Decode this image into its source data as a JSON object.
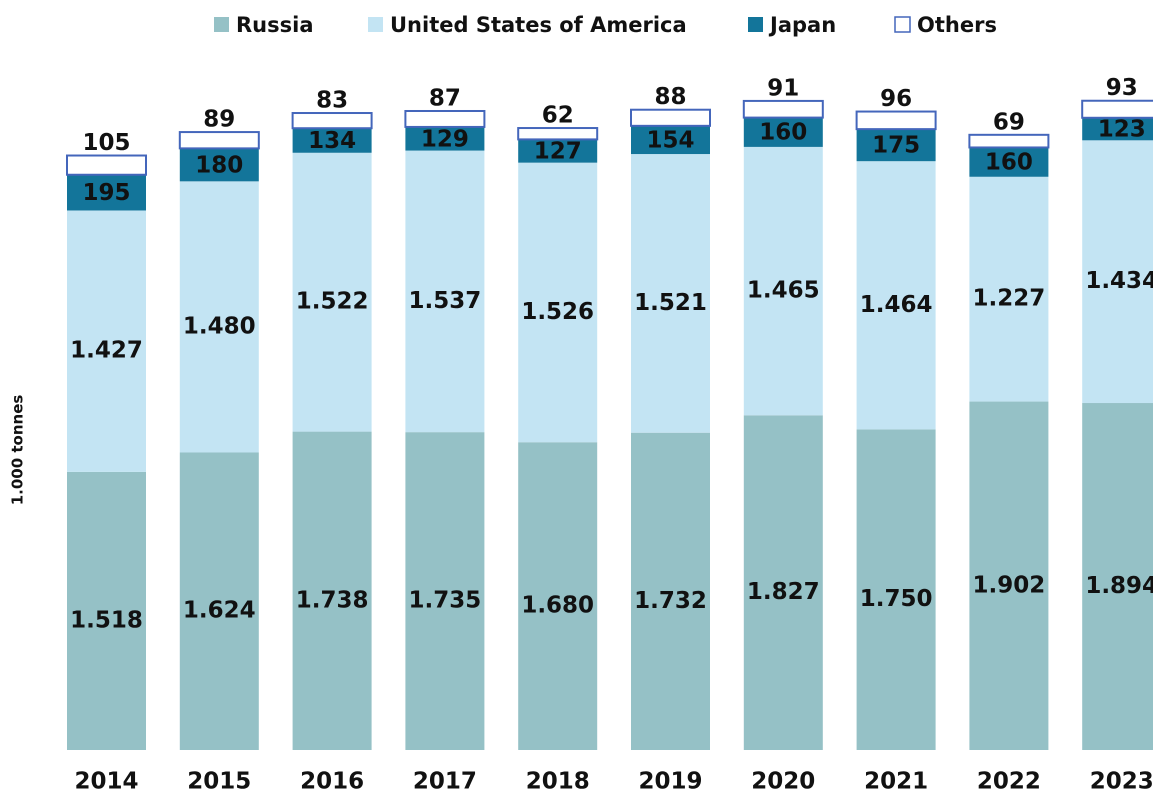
{
  "chart_data": {
    "type": "stacked_bar",
    "y_label": "1.000 tonnes",
    "categories": [
      "2014",
      "2015",
      "2016",
      "2017",
      "2018",
      "2019",
      "2020",
      "2021",
      "2022",
      "2023"
    ],
    "series": [
      {
        "name": "Russia",
        "color": "#95c1c6",
        "values": [
          1518,
          1624,
          1738,
          1735,
          1680,
          1732,
          1827,
          1750,
          1902,
          1894
        ],
        "value_labels": [
          "1.518",
          "1.624",
          "1.738",
          "1.735",
          "1.680",
          "1.732",
          "1.827",
          "1.750",
          "1.902",
          "1.894"
        ]
      },
      {
        "name": "United States of America",
        "color": "#c3e4f3",
        "values": [
          1427,
          1480,
          1522,
          1537,
          1526,
          1521,
          1465,
          1464,
          1227,
          1434
        ],
        "value_labels": [
          "1.427",
          "1.480",
          "1.522",
          "1.537",
          "1.526",
          "1.521",
          "1.465",
          "1.464",
          "1.227",
          "1.434"
        ]
      },
      {
        "name": "Japan",
        "color": "#13759a",
        "values": [
          195,
          180,
          134,
          129,
          127,
          154,
          160,
          175,
          160,
          123
        ]
      },
      {
        "name": "Others",
        "color": "#ffffff",
        "values": [
          105,
          89,
          83,
          87,
          62,
          88,
          91,
          96,
          69,
          93
        ]
      }
    ]
  }
}
